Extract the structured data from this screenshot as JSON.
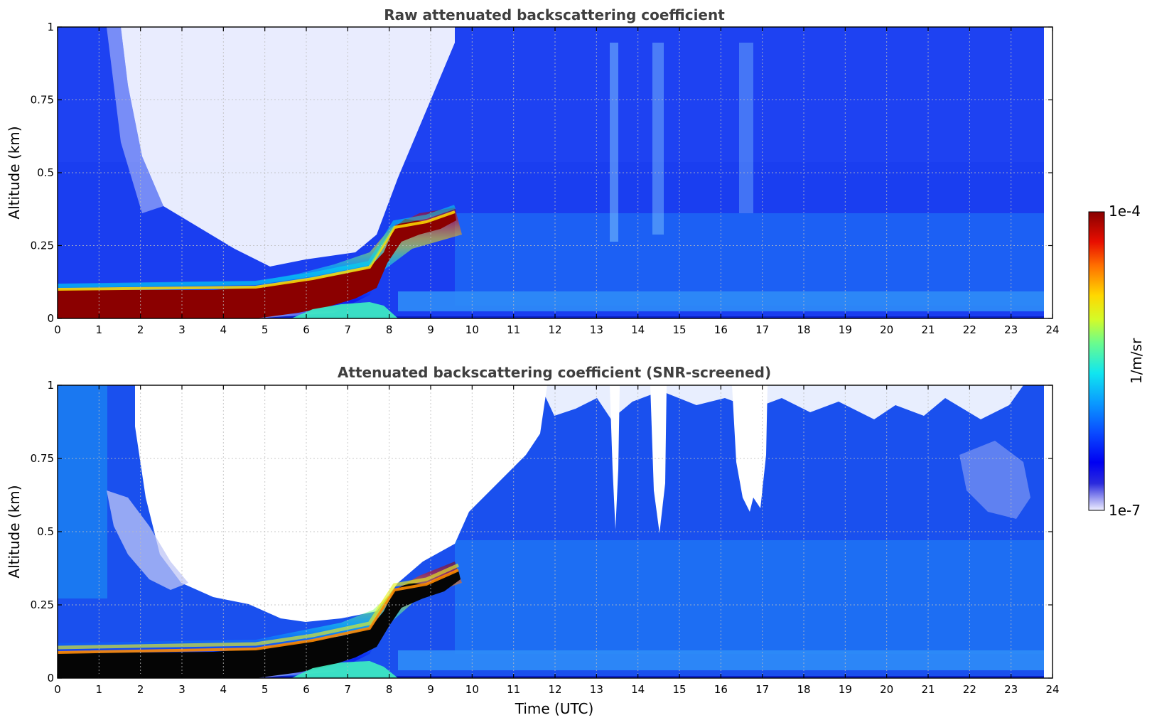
{
  "chart_data": [
    {
      "type": "heatmap",
      "title": "Raw attenuated backscattering coefficient",
      "xlabel": "",
      "ylabel": "Altitude (km)",
      "xlim": [
        0,
        24
      ],
      "ylim": [
        0,
        1
      ],
      "x_ticks": [
        "0",
        "1",
        "2",
        "3",
        "4",
        "5",
        "6",
        "7",
        "8",
        "9",
        "10",
        "11",
        "12",
        "13",
        "14",
        "15",
        "16",
        "17",
        "18",
        "19",
        "20",
        "21",
        "22",
        "23",
        "24"
      ],
      "y_ticks": [
        "0",
        "0.25",
        "0.5",
        "0.75",
        "1"
      ],
      "grid": true,
      "data_extent_hours": [
        0,
        23.8
      ],
      "features": {
        "surface_layer_top_km": [
          [
            0,
            0.1
          ],
          [
            3,
            0.1
          ],
          [
            5,
            0.11
          ],
          [
            6,
            0.13
          ],
          [
            7,
            0.2
          ],
          [
            7.6,
            0.22
          ],
          [
            8,
            0.3
          ],
          [
            8.5,
            0.33
          ],
          [
            9,
            0.34
          ],
          [
            9.8,
            0.37
          ]
        ],
        "clear_gap_hours": [
          1.8,
          7.8
        ],
        "noise_columns_hours": [
          13.5,
          14.6,
          16.8
        ]
      }
    },
    {
      "type": "heatmap",
      "title": "Attenuated backscattering coefficient (SNR-screened)",
      "xlabel": "Time (UTC)",
      "ylabel": "Altitude (km)",
      "xlim": [
        0,
        24
      ],
      "ylim": [
        0,
        1
      ],
      "x_ticks": [
        "0",
        "1",
        "2",
        "3",
        "4",
        "5",
        "6",
        "7",
        "8",
        "9",
        "10",
        "11",
        "12",
        "13",
        "14",
        "15",
        "16",
        "17",
        "18",
        "19",
        "20",
        "21",
        "22",
        "23",
        "24"
      ],
      "y_ticks": [
        "0",
        "0.25",
        "0.5",
        "0.75",
        "1"
      ],
      "grid": true,
      "data_extent_hours": [
        0,
        23.8
      ],
      "features": {
        "screened_boundary_km": [
          [
            0,
            1.0
          ],
          [
            1.0,
            1.0
          ],
          [
            1.8,
            0.85
          ],
          [
            2.2,
            0.45
          ],
          [
            3,
            0.27
          ],
          [
            4,
            0.25
          ],
          [
            5,
            0.2
          ],
          [
            6,
            0.18
          ],
          [
            7,
            0.22
          ],
          [
            7.6,
            0.23
          ],
          [
            8,
            0.32
          ],
          [
            9,
            0.4
          ],
          [
            9.8,
            0.52
          ],
          [
            10.5,
            0.63
          ],
          [
            11,
            0.73
          ],
          [
            11.8,
            0.95
          ],
          [
            12,
            1.0
          ],
          [
            24,
            1.0
          ]
        ],
        "screened_notches": [
          {
            "center_hour": 13.5,
            "bottom_km": 0.5
          },
          {
            "center_hour": 14.6,
            "bottom_km": 0.49
          },
          {
            "center_hour": 16.9,
            "bottom_km": 0.56
          }
        ]
      }
    }
  ],
  "colorbar": {
    "label": "1/m/sr",
    "max_label": "1e-4",
    "min_label": "1e-7",
    "range": [
      1e-07,
      0.0001
    ],
    "scale": "log",
    "colormap": "jet"
  },
  "colors": {
    "title": "#3f3f3f",
    "grid": "#bdbdbd",
    "background": "#ffffff"
  }
}
